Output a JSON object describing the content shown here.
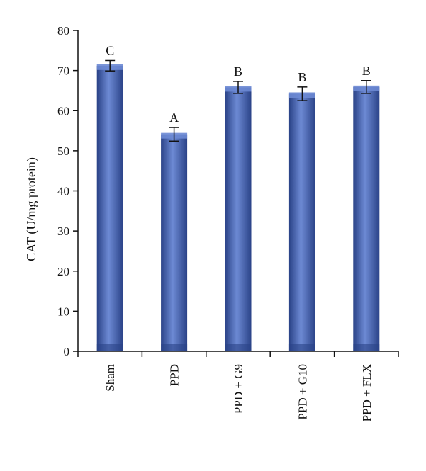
{
  "chart_data": {
    "type": "bar",
    "title": "",
    "xlabel": "",
    "ylabel": "CAT (U/mg protein)",
    "ylim": [
      0,
      80
    ],
    "yticks": [
      0,
      10,
      20,
      30,
      40,
      50,
      60,
      70,
      80
    ],
    "grid": false,
    "legend": "none",
    "categories": [
      "Sham",
      "PPD",
      "PPD + G9",
      "PPD + G10",
      "PPD + FLX"
    ],
    "values": [
      71.2,
      54.1,
      65.8,
      64.2,
      65.9
    ],
    "errors": [
      1.3,
      1.7,
      1.5,
      1.7,
      1.6
    ],
    "significance_labels": [
      "C",
      "A",
      "B",
      "B",
      "B"
    ],
    "colors": {
      "bar": "#3f5fb0",
      "bar_dark": "#2a4287",
      "bar_light": "#6d8ad4",
      "axis": "#111111"
    }
  }
}
